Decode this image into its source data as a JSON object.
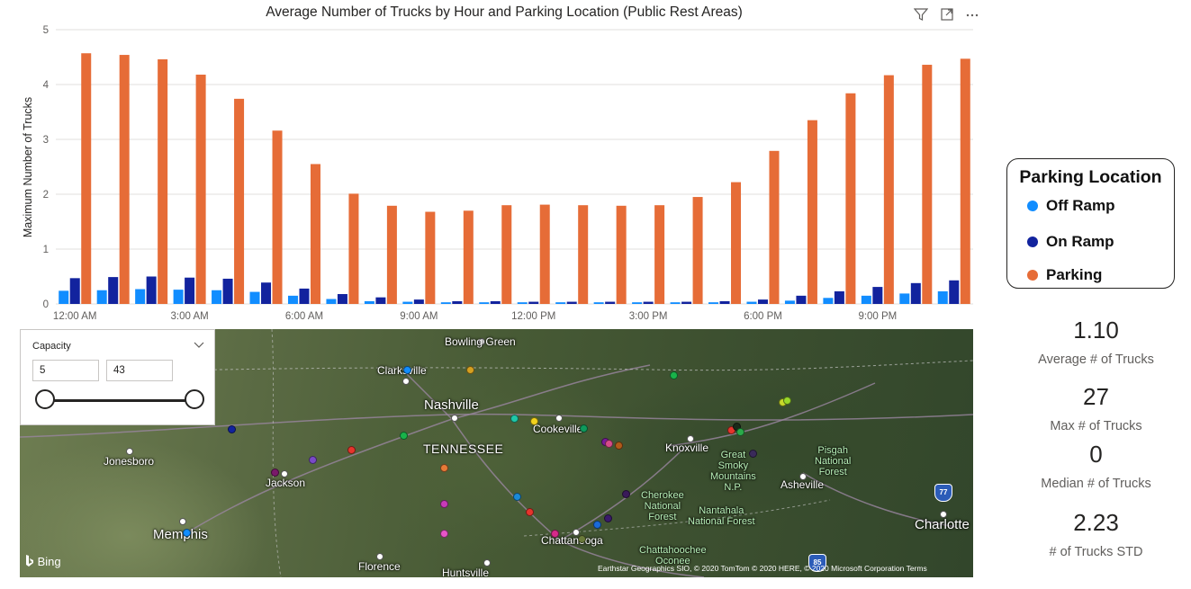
{
  "header": {
    "title": "Average Number of Trucks by Hour and Parking Location (Public Rest Areas)",
    "icons": [
      "filter-icon",
      "focus-mode-icon",
      "more-options-icon"
    ]
  },
  "chart_data": {
    "type": "bar",
    "title": "Average Number of Trucks by Hour and Parking Location (Public Rest Areas)",
    "xlabel": "",
    "ylabel": "Maximum Number of Trucks",
    "ylim": [
      0,
      5
    ],
    "yticks": [
      "0",
      "1",
      "2",
      "3",
      "4",
      "5"
    ],
    "categories": [
      "12:00 AM",
      "1:00 AM",
      "2:00 AM",
      "3:00 AM",
      "4:00 AM",
      "5:00 AM",
      "6:00 AM",
      "7:00 AM",
      "8:00 AM",
      "9:00 AM",
      "10:00 AM",
      "11:00 AM",
      "12:00 PM",
      "1:00 PM",
      "2:00 PM",
      "3:00 PM",
      "4:00 PM",
      "5:00 PM",
      "6:00 PM",
      "7:00 PM",
      "8:00 PM",
      "9:00 PM",
      "10:00 PM",
      "11:00 PM"
    ],
    "tick_labels": [
      "12:00 AM",
      "3:00 AM",
      "6:00 AM",
      "9:00 AM",
      "12:00 PM",
      "3:00 PM",
      "6:00 PM",
      "9:00 PM"
    ],
    "series": [
      {
        "name": "Off Ramp",
        "color": "#118dff",
        "values": [
          0.24,
          0.25,
          0.27,
          0.26,
          0.25,
          0.22,
          0.15,
          0.09,
          0.05,
          0.04,
          0.03,
          0.03,
          0.03,
          0.03,
          0.03,
          0.03,
          0.03,
          0.03,
          0.04,
          0.06,
          0.11,
          0.15,
          0.19,
          0.23
        ]
      },
      {
        "name": "On Ramp",
        "color": "#12239e",
        "values": [
          0.47,
          0.49,
          0.5,
          0.48,
          0.46,
          0.39,
          0.28,
          0.18,
          0.12,
          0.08,
          0.05,
          0.05,
          0.04,
          0.04,
          0.04,
          0.04,
          0.04,
          0.05,
          0.08,
          0.15,
          0.23,
          0.31,
          0.38,
          0.43
        ]
      },
      {
        "name": "Parking",
        "color": "#e66c37",
        "values": [
          4.57,
          4.54,
          4.46,
          4.18,
          3.74,
          3.16,
          2.55,
          2.01,
          1.79,
          1.68,
          1.7,
          1.8,
          1.81,
          1.8,
          1.79,
          1.8,
          1.95,
          2.22,
          2.79,
          3.35,
          3.84,
          4.17,
          4.36,
          4.47
        ]
      }
    ],
    "grid": true,
    "legend": "right"
  },
  "legend": {
    "title": "Parking Location",
    "items": [
      {
        "label": "Off Ramp",
        "color": "#118dff"
      },
      {
        "label": "On Ramp",
        "color": "#12239e"
      },
      {
        "label": "Parking",
        "color": "#e66c37"
      }
    ]
  },
  "kpis": [
    {
      "value": "1.10",
      "label": "Average # of Trucks"
    },
    {
      "value": "27",
      "label": "Max # of Trucks"
    },
    {
      "value": "0",
      "label": "Median # of Trucks"
    },
    {
      "value": "2.23",
      "label": "# of Trucks STD"
    }
  ],
  "slicer": {
    "title": "Capacity",
    "min_value": "5",
    "max_value": "43"
  },
  "map": {
    "cities": {
      "bowling_green": "Bowling Green",
      "clarksville": "Clarksville",
      "nashville": "Nashville",
      "cookeville": "Cookeville",
      "tennessee": "TENNESSEE",
      "knoxville": "Knoxville",
      "jonesboro": "Jonesboro",
      "jackson": "Jackson",
      "memphis": "Memphis",
      "chattanooga": "Chattanooga",
      "asheville": "Asheville",
      "charlotte": "Charlotte",
      "florence": "Florence",
      "huntsville": "Huntsville"
    },
    "parks": {
      "smoky": "Great\nSmoky\nMountains\nN.P.",
      "pisgah": "Pisgah\nNational\nForest",
      "cherokee": "Cherokee\nNational\nForest",
      "nantahala": "Nantahala\nNational Forest",
      "chattahoochee": "Chattahoochee\nOconee"
    },
    "shields": {
      "i77": "77",
      "i85": "85"
    },
    "bing_label": "Bing",
    "copyright": "Earthstar Geographics SIO, © 2020 TomTom © 2020 HERE, © 2020 Microsoft Corporation  Terms"
  }
}
